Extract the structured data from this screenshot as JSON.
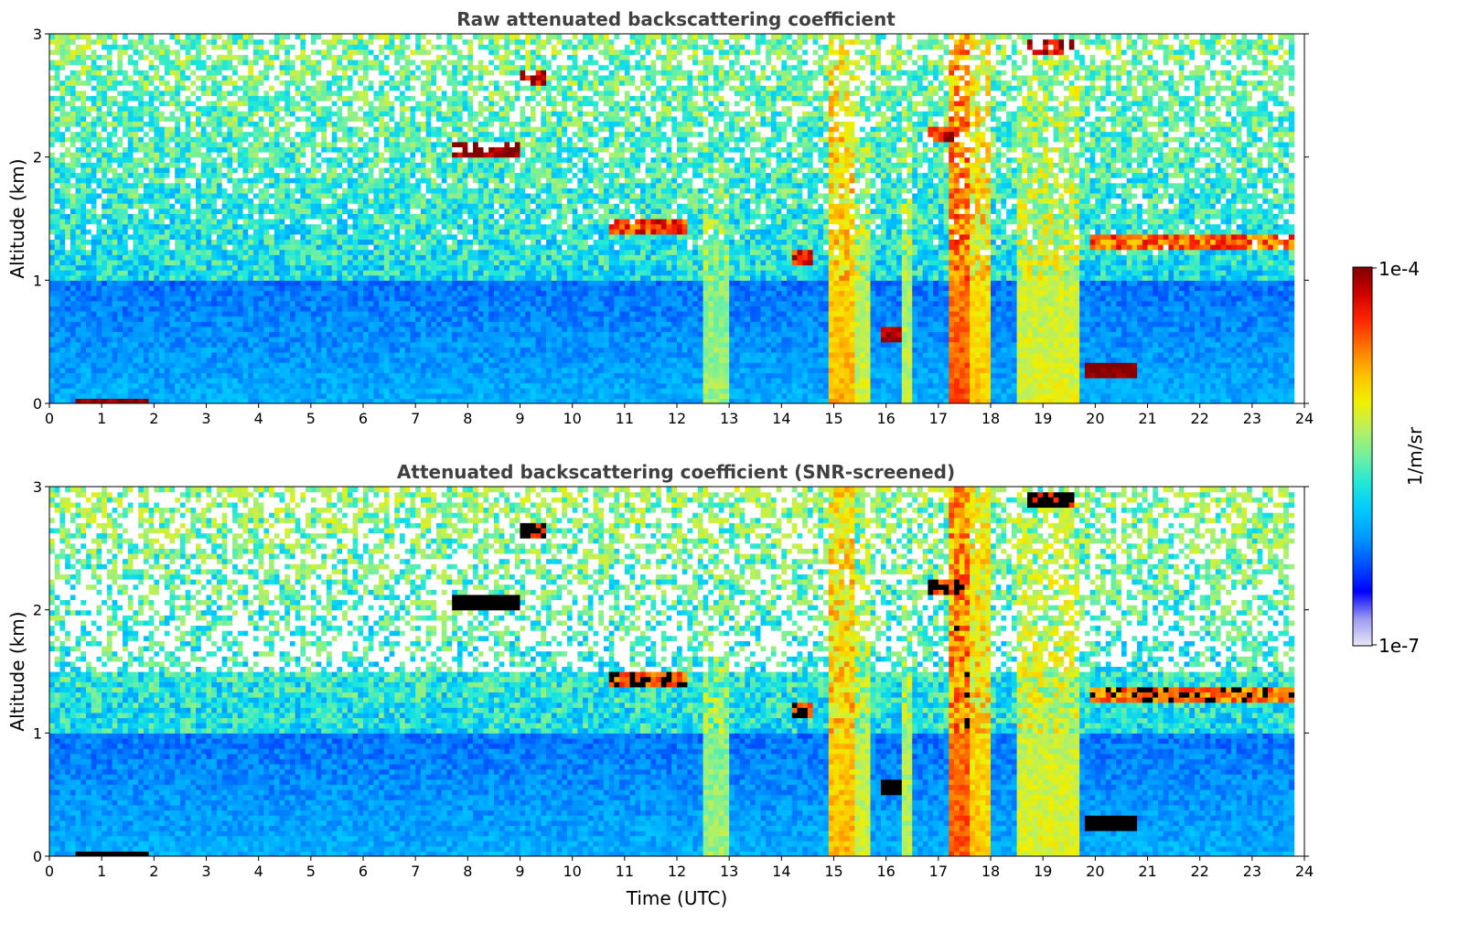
{
  "chart_data": [
    {
      "type": "heatmap",
      "title": "Raw attenuated backscattering coefficient",
      "xlabel": "",
      "ylabel": "Altitude (km)",
      "xlim": [
        0,
        24
      ],
      "ylim": [
        0,
        3
      ],
      "x_ticks": [
        0,
        1,
        2,
        3,
        4,
        5,
        6,
        7,
        8,
        9,
        10,
        11,
        12,
        13,
        14,
        15,
        16,
        17,
        18,
        19,
        20,
        21,
        22,
        23,
        24
      ],
      "y_ticks": [
        0,
        1,
        2,
        3
      ],
      "data_end_hour": 23.8,
      "color_scale": "log",
      "features": {
        "boundary_layer_top_km": 1.0,
        "clouds": [
          {
            "t_start": 7.7,
            "t_end": 9.0,
            "alt_km": 2.05,
            "strength": 1.0
          },
          {
            "t_start": 9.0,
            "t_end": 9.5,
            "alt_km": 2.65,
            "strength": 0.95
          },
          {
            "t_start": 10.7,
            "t_end": 12.2,
            "alt_km": 1.45,
            "strength": 0.85
          },
          {
            "t_start": 14.2,
            "t_end": 14.6,
            "alt_km": 1.2,
            "strength": 0.9
          },
          {
            "t_start": 15.9,
            "t_end": 16.3,
            "alt_km": 0.55,
            "strength": 0.95
          },
          {
            "t_start": 16.8,
            "t_end": 17.5,
            "alt_km": 2.2,
            "strength": 0.9
          },
          {
            "t_start": 18.7,
            "t_end": 19.6,
            "alt_km": 2.9,
            "strength": 0.95
          },
          {
            "t_start": 19.8,
            "t_end": 20.8,
            "alt_km": 0.27,
            "strength": 1.0
          },
          {
            "t_start": 19.9,
            "t_end": 23.8,
            "alt_km": 1.3,
            "strength": 0.8
          }
        ],
        "precipitation_columns": [
          {
            "t_start": 12.55,
            "t_end": 12.95,
            "strength": 0.55
          },
          {
            "t_start": 14.95,
            "t_end": 15.35,
            "strength": 0.72
          },
          {
            "t_start": 15.35,
            "t_end": 15.7,
            "strength": 0.6
          },
          {
            "t_start": 16.3,
            "t_end": 16.45,
            "strength": 0.58
          },
          {
            "t_start": 17.25,
            "t_end": 17.65,
            "strength": 0.82
          },
          {
            "t_start": 17.65,
            "t_end": 17.95,
            "strength": 0.7
          },
          {
            "t_start": 18.55,
            "t_end": 19.7,
            "strength": 0.62
          }
        ],
        "surface_layer": {
          "t_start": 0.5,
          "t_end": 1.9,
          "alt_km": 0.02
        }
      }
    },
    {
      "type": "heatmap",
      "title": "Attenuated backscattering coefficient (SNR-screened)",
      "xlabel": "Time (UTC)",
      "ylabel": "Altitude (km)",
      "xlim": [
        0,
        24
      ],
      "ylim": [
        0,
        3
      ],
      "x_ticks": [
        0,
        1,
        2,
        3,
        4,
        5,
        6,
        7,
        8,
        9,
        10,
        11,
        12,
        13,
        14,
        15,
        16,
        17,
        18,
        19,
        20,
        21,
        22,
        23,
        24
      ],
      "y_ticks": [
        0,
        1,
        2,
        3
      ],
      "data_end_hour": 23.8,
      "color_scale": "log",
      "screened": true
    }
  ],
  "colorbar": {
    "label": "1/m/sr",
    "max_label": "1e-4",
    "min_label": "1e-7",
    "colormap": [
      "#e8e8f8",
      "#9a9af0",
      "#0000ff",
      "#0050ff",
      "#0098ff",
      "#00c8ff",
      "#20e8d8",
      "#70f0a0",
      "#b8f060",
      "#f0f000",
      "#ffc000",
      "#ff7800",
      "#ff2800",
      "#d00000",
      "#800000"
    ]
  }
}
